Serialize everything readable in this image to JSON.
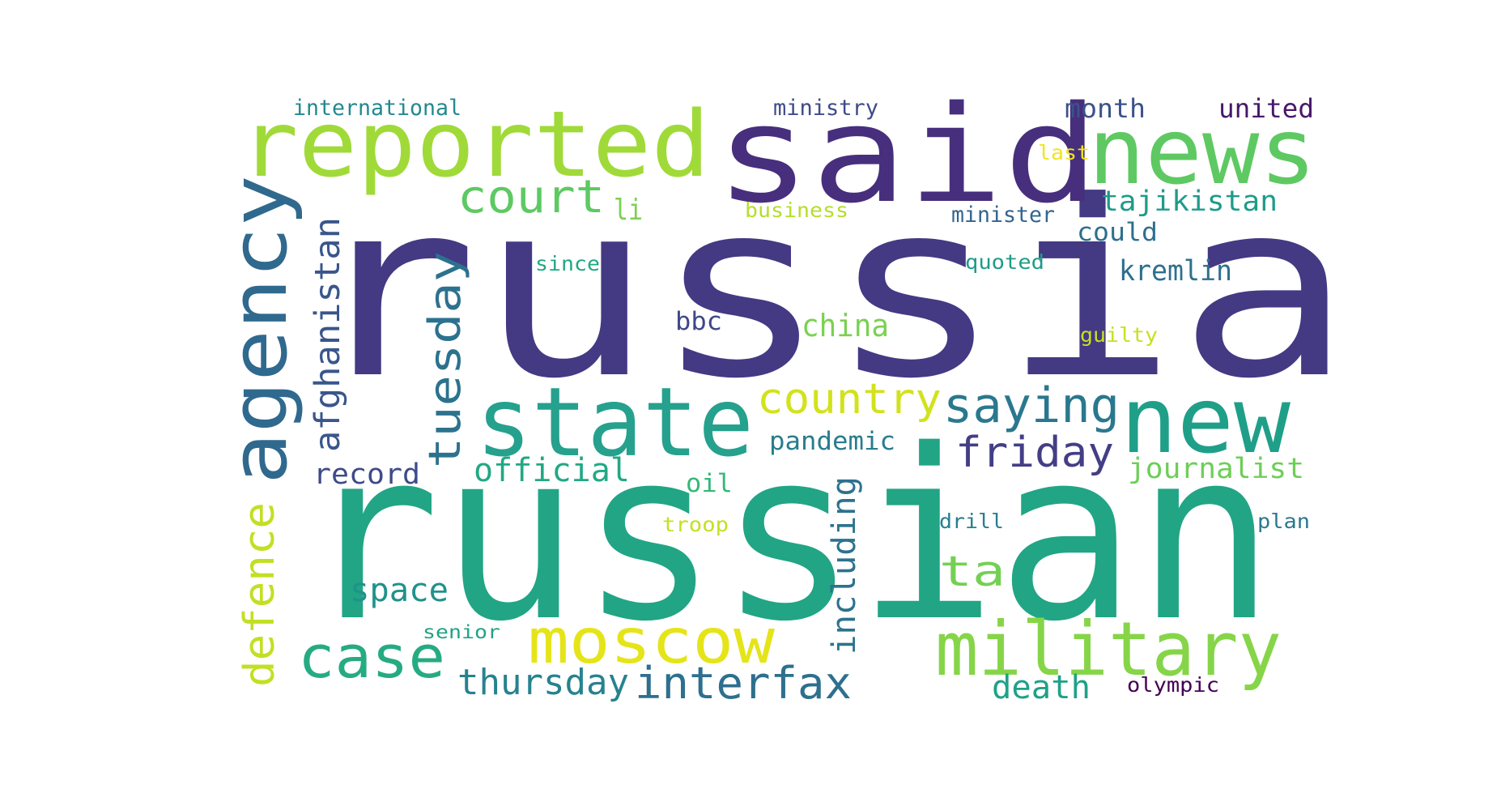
{
  "words": [
    {
      "text": "russia",
      "color": "#443983"
    },
    {
      "text": "russian",
      "color": "#21a585"
    },
    {
      "text": "said",
      "color": "#472f7d"
    },
    {
      "text": "reported",
      "color": "#a0da39"
    },
    {
      "text": "news",
      "color": "#5ec962"
    },
    {
      "text": "agency",
      "color": "#30698e"
    },
    {
      "text": "state",
      "color": "#25a18e"
    },
    {
      "text": "new",
      "color": "#1f9f88"
    },
    {
      "text": "military",
      "color": "#86d549"
    },
    {
      "text": "moscow",
      "color": "#e5e419"
    },
    {
      "text": "case",
      "color": "#25ab82"
    },
    {
      "text": "interfax",
      "color": "#2d708e"
    },
    {
      "text": "court",
      "color": "#5ec962"
    },
    {
      "text": "tuesday",
      "color": "#2c728e"
    },
    {
      "text": "afghanistan",
      "color": "#39568c"
    },
    {
      "text": "defence",
      "color": "#c2df23"
    },
    {
      "text": "country",
      "color": "#d2e21b"
    },
    {
      "text": "saying",
      "color": "#2a788e"
    },
    {
      "text": "friday",
      "color": "#433e85"
    },
    {
      "text": "thursday",
      "color": "#26828e"
    },
    {
      "text": "official",
      "color": "#22a884"
    },
    {
      "text": "ta",
      "color": "#74d055"
    },
    {
      "text": "including",
      "color": "#2c728e"
    },
    {
      "text": "space",
      "color": "#20928c"
    },
    {
      "text": "death",
      "color": "#1fa188"
    },
    {
      "text": "journalist",
      "color": "#6ece58"
    },
    {
      "text": "tajikistan",
      "color": "#1e9b8a"
    },
    {
      "text": "kremlin",
      "color": "#2d708e"
    },
    {
      "text": "record",
      "color": "#3e4a89"
    },
    {
      "text": "china",
      "color": "#7ad151"
    },
    {
      "text": "pandemic",
      "color": "#287d8e"
    },
    {
      "text": "could",
      "color": "#2e6f8e"
    },
    {
      "text": "month",
      "color": "#3b528b"
    },
    {
      "text": "united",
      "color": "#48186a"
    },
    {
      "text": "international",
      "color": "#23898e"
    },
    {
      "text": "ministry",
      "color": "#3e4a89"
    },
    {
      "text": "bbc",
      "color": "#3f4788"
    },
    {
      "text": "oil",
      "color": "#35b779"
    },
    {
      "text": "li",
      "color": "#7ad151"
    },
    {
      "text": "business",
      "color": "#b5de2b"
    },
    {
      "text": "minister",
      "color": "#32648e"
    },
    {
      "text": "since",
      "color": "#22a785"
    },
    {
      "text": "quoted",
      "color": "#1e9c89"
    },
    {
      "text": "guilty",
      "color": "#c8e020"
    },
    {
      "text": "last",
      "color": "#f1e51d"
    },
    {
      "text": "drill",
      "color": "#277f8e"
    },
    {
      "text": "plan",
      "color": "#2a788e"
    },
    {
      "text": "troop",
      "color": "#c5e021"
    },
    {
      "text": "senior",
      "color": "#20a386"
    },
    {
      "text": "olympic",
      "color": "#440154"
    }
  ]
}
